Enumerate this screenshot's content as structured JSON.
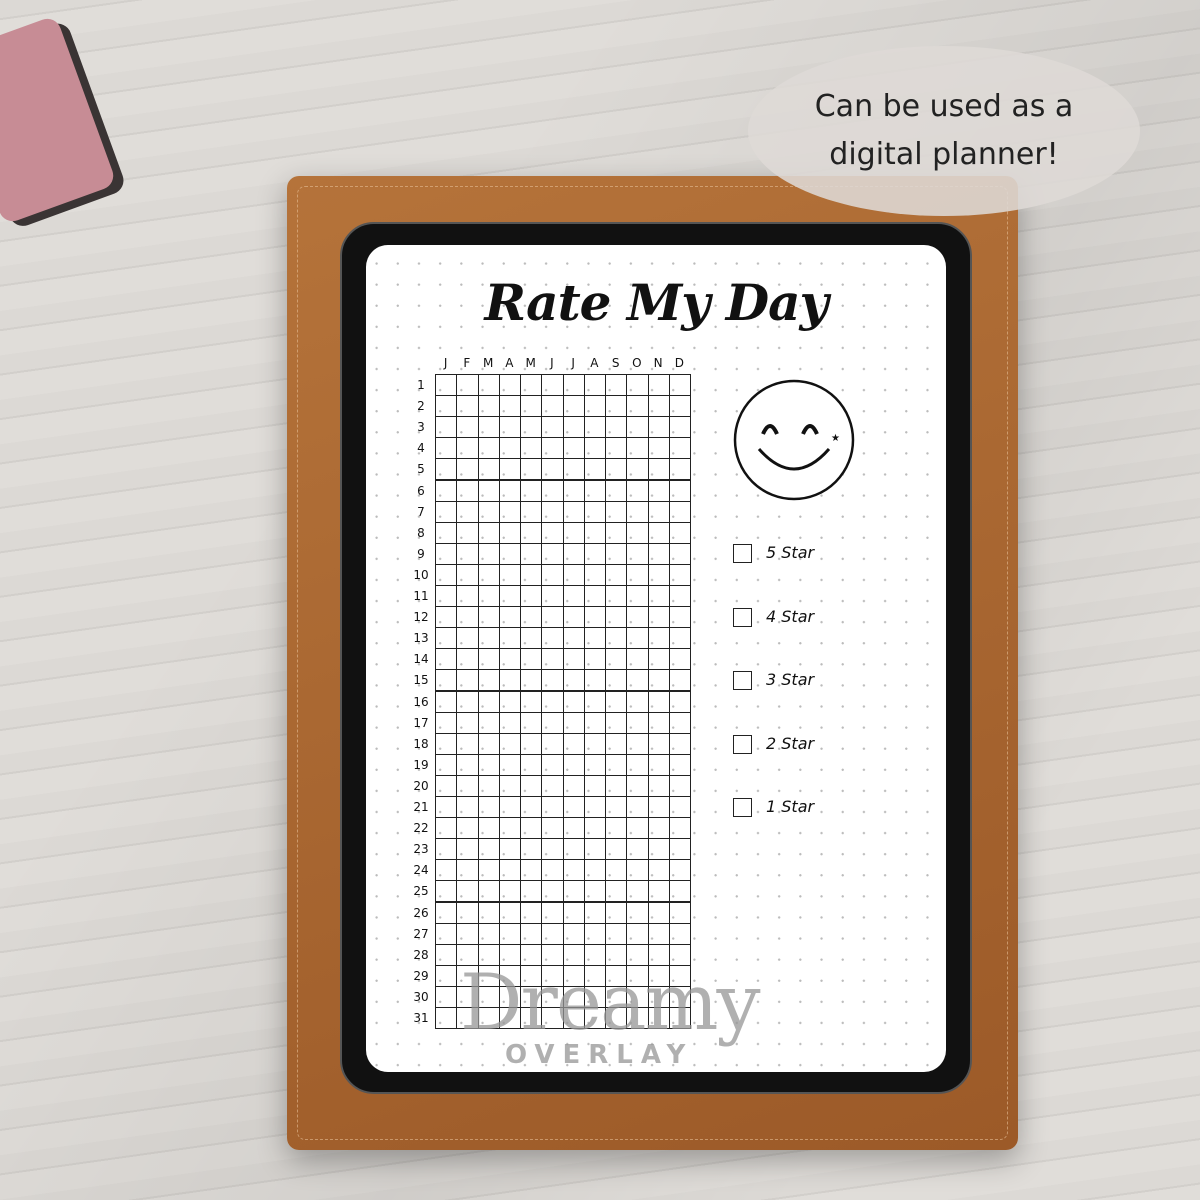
{
  "planner": {
    "title": "Rate My Day",
    "months": [
      "J",
      "F",
      "M",
      "A",
      "M",
      "J",
      "J",
      "A",
      "S",
      "O",
      "N",
      "D"
    ],
    "days": [
      "1",
      "2",
      "3",
      "4",
      "5",
      "6",
      "7",
      "8",
      "9",
      "10",
      "11",
      "12",
      "13",
      "14",
      "15",
      "16",
      "17",
      "18",
      "19",
      "20",
      "21",
      "22",
      "23",
      "24",
      "25",
      "26",
      "27",
      "28",
      "29",
      "30",
      "31"
    ],
    "ratings": [
      "5 Star",
      "4 Star",
      "3 Star",
      "2 Star",
      "1 Star"
    ],
    "smiley_icon": "smiley-face-icon"
  },
  "watermark": {
    "line1": "Dreamy",
    "line2": "OVERLAY"
  },
  "callout": {
    "text_line1": "Can be used as a",
    "text_line2": "digital planner!"
  },
  "colors": {
    "case": "#a8642e",
    "tablet": "#111111",
    "bubble": "#dedad6"
  }
}
